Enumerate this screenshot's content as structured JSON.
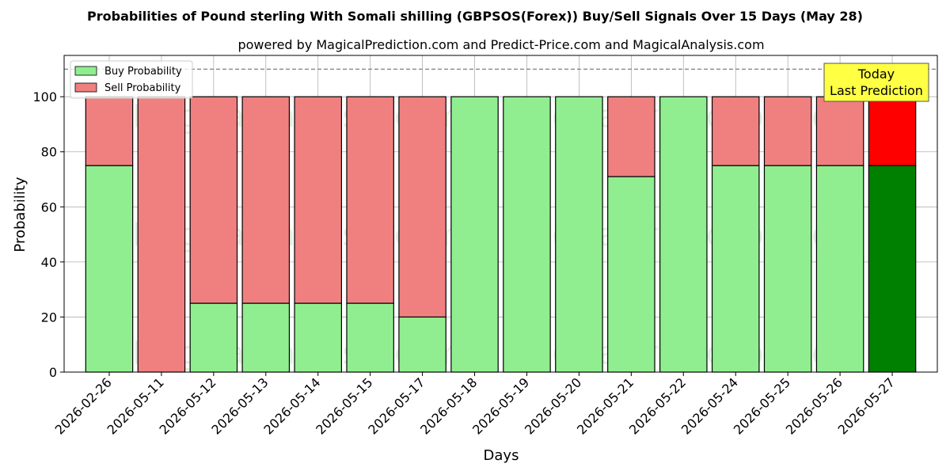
{
  "chart_data": {
    "type": "bar",
    "stacked": true,
    "title": "Probabilities of Pound sterling With Somali shilling (GBPSOS(Forex)) Buy/Sell Signals Over 15 Days (May 28)",
    "subtitle": "powered by MagicalPrediction.com and Predict-Price.com and MagicalAnalysis.com",
    "xlabel": "Days",
    "ylabel": "Probability",
    "ylim": [
      0,
      115
    ],
    "yticks": [
      0,
      20,
      40,
      60,
      80,
      100
    ],
    "grid": true,
    "legend_position": "top-left",
    "reference_line": 110,
    "categories": [
      "2026-02-26",
      "2026-05-11",
      "2026-05-12",
      "2026-05-13",
      "2026-05-14",
      "2026-05-15",
      "2026-05-17",
      "2026-05-18",
      "2026-05-19",
      "2026-05-20",
      "2026-05-21",
      "2026-05-22",
      "2026-05-24",
      "2026-05-25",
      "2026-05-26",
      "2026-05-27"
    ],
    "series": [
      {
        "name": "Buy Probability",
        "color": "#90ee90",
        "highlight_color": "#008000",
        "values": [
          75,
          0,
          25,
          25,
          25,
          25,
          20,
          100,
          100,
          100,
          71,
          100,
          75,
          75,
          75,
          75
        ]
      },
      {
        "name": "Sell Probability",
        "color": "#f08080",
        "highlight_color": "#ff0000",
        "values": [
          25,
          100,
          75,
          75,
          75,
          75,
          80,
          0,
          0,
          0,
          29,
          0,
          25,
          25,
          25,
          25
        ]
      }
    ],
    "highlight_index": 15,
    "annotation": {
      "lines": [
        "Today",
        "Last Prediction"
      ],
      "background": "#ffff44"
    },
    "watermarks": [
      "MagicalAnalysis.com",
      "MagicalPrediction.com"
    ]
  }
}
